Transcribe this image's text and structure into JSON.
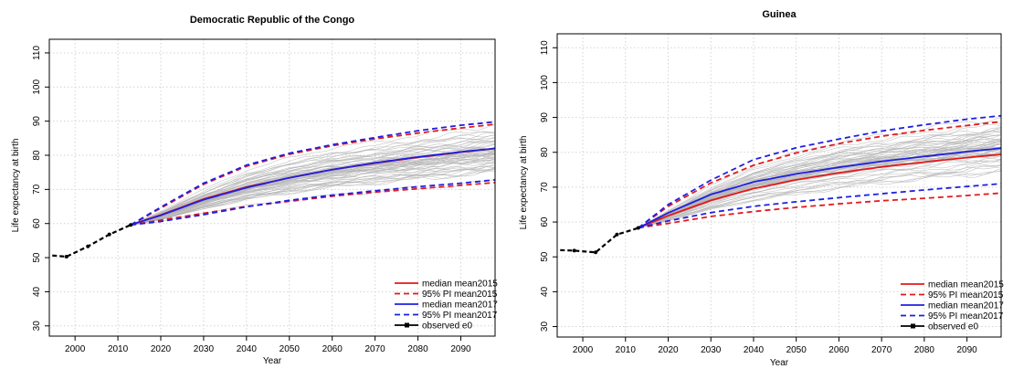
{
  "chart_data": [
    {
      "type": "line",
      "title": "Democratic Republic of the Congo",
      "xlabel": "Year",
      "ylabel": "Life expectancy at birth",
      "xlim": [
        1994,
        2098
      ],
      "ylim": [
        27,
        114
      ],
      "xticks": [
        2000,
        2010,
        2020,
        2030,
        2040,
        2050,
        2060,
        2070,
        2080,
        2090
      ],
      "yticks": [
        30,
        40,
        50,
        60,
        70,
        80,
        90,
        100,
        110
      ],
      "grid": true,
      "legend_position": "bottom-right",
      "observed": {
        "name": "observed e0",
        "color": "#000000",
        "x": [
          1993,
          1998,
          2003,
          2008,
          2013
        ],
        "y": [
          50.8,
          50.3,
          53.3,
          56.8,
          59.6
        ]
      },
      "trajectory_band": {
        "x": [
          2013,
          2020,
          2030,
          2040,
          2050,
          2060,
          2070,
          2080,
          2090,
          2098
        ],
        "low": [
          59.5,
          60.5,
          63,
          65,
          66.5,
          68,
          69,
          70,
          71,
          72
        ],
        "high": [
          59.7,
          64,
          71,
          77,
          81,
          84,
          86,
          88,
          90,
          91
        ],
        "count": 60,
        "color": "#b3b3b3"
      },
      "series": [
        {
          "name": "median mean2015",
          "color": "#e31a1c",
          "dash": false,
          "x": [
            2013,
            2020,
            2030,
            2040,
            2050,
            2060,
            2070,
            2080,
            2090,
            2098
          ],
          "y": [
            59.6,
            62.5,
            67.2,
            70.7,
            73.4,
            75.8,
            77.7,
            79.4,
            80.9,
            82
          ]
        },
        {
          "name": "95% PI mean2015",
          "color": "#e31a1c",
          "dash": true,
          "x": [
            2013,
            2020,
            2030,
            2040,
            2050,
            2060,
            2070,
            2080,
            2090,
            2098
          ],
          "y": [
            59.6,
            64.5,
            71.5,
            76.8,
            80.3,
            82.8,
            84.8,
            86.5,
            88,
            89.1
          ]
        },
        {
          "name": "95% PI mean2015",
          "color": "#e31a1c",
          "dash": true,
          "x": [
            2013,
            2020,
            2030,
            2040,
            2050,
            2060,
            2070,
            2080,
            2090,
            2098
          ],
          "y": [
            59.6,
            61,
            63,
            65,
            66.5,
            68,
            69.2,
            70.2,
            71.2,
            72
          ]
        },
        {
          "name": "median mean2017",
          "color": "#1f1fe0",
          "dash": false,
          "x": [
            2013,
            2020,
            2030,
            2040,
            2050,
            2060,
            2070,
            2080,
            2090,
            2098
          ],
          "y": [
            59.6,
            62.4,
            67,
            70.5,
            73.4,
            75.8,
            77.8,
            79.5,
            81,
            82
          ]
        },
        {
          "name": "95% PI mean2017",
          "color": "#1f1fe0",
          "dash": true,
          "x": [
            2013,
            2020,
            2030,
            2040,
            2050,
            2060,
            2070,
            2080,
            2090,
            2098
          ],
          "y": [
            59.6,
            64.8,
            71.8,
            77.1,
            80.6,
            83.1,
            85.2,
            87.2,
            88.8,
            89.8
          ]
        },
        {
          "name": "95% PI mean2017",
          "color": "#1f1fe0",
          "dash": true,
          "x": [
            2013,
            2020,
            2030,
            2040,
            2050,
            2060,
            2070,
            2080,
            2090,
            2098
          ],
          "y": [
            59.6,
            60.6,
            62.6,
            64.9,
            66.8,
            68.3,
            69.6,
            70.8,
            71.8,
            72.8
          ]
        }
      ],
      "legend": [
        {
          "label": "median mean2015",
          "color": "#e31a1c",
          "style": "solid"
        },
        {
          "label": "95% PI mean2015",
          "color": "#e31a1c",
          "style": "dashed"
        },
        {
          "label": "median mean2017",
          "color": "#1f1fe0",
          "style": "solid"
        },
        {
          "label": "95% PI mean2017",
          "color": "#1f1fe0",
          "style": "dashed"
        },
        {
          "label": "observed e0",
          "color": "#000000",
          "style": "solid-point"
        }
      ]
    },
    {
      "type": "line",
      "title": "Guinea",
      "xlabel": "Year",
      "ylabel": "Life expectancy at birth",
      "xlim": [
        1994,
        2098
      ],
      "ylim": [
        27,
        114
      ],
      "xticks": [
        2000,
        2010,
        2020,
        2030,
        2040,
        2050,
        2060,
        2070,
        2080,
        2090
      ],
      "yticks": [
        30,
        40,
        50,
        60,
        70,
        80,
        90,
        100,
        110
      ],
      "grid": true,
      "legend_position": "bottom-right",
      "observed": {
        "name": "observed e0",
        "color": "#000000",
        "x": [
          1993,
          1998,
          2003,
          2008,
          2013
        ],
        "y": [
          52,
          51.8,
          51.3,
          56.4,
          58.3
        ]
      },
      "trajectory_band": {
        "x": [
          2013,
          2020,
          2030,
          2040,
          2050,
          2060,
          2070,
          2080,
          2090,
          2098
        ],
        "low": [
          58.2,
          60,
          62.5,
          64.5,
          66,
          67.5,
          69,
          70,
          71,
          72
        ],
        "high": [
          58.4,
          63.5,
          71,
          77,
          81,
          84,
          86,
          88,
          90,
          91
        ],
        "count": 60,
        "color": "#b3b3b3"
      },
      "series": [
        {
          "name": "median mean2015",
          "color": "#e31a1c",
          "dash": false,
          "x": [
            2013,
            2020,
            2030,
            2040,
            2050,
            2060,
            2070,
            2080,
            2090,
            2098
          ],
          "y": [
            58.3,
            61.8,
            66.2,
            69.6,
            72.1,
            74.1,
            75.8,
            77.2,
            78.5,
            79.4
          ]
        },
        {
          "name": "95% PI mean2015",
          "color": "#e31a1c",
          "dash": true,
          "x": [
            2013,
            2020,
            2030,
            2040,
            2050,
            2060,
            2070,
            2080,
            2090,
            2098
          ],
          "y": [
            58.3,
            64.5,
            71.2,
            76.3,
            79.8,
            82.5,
            84.6,
            86.3,
            87.7,
            88.8
          ]
        },
        {
          "name": "95% PI mean2015",
          "color": "#e31a1c",
          "dash": true,
          "x": [
            2013,
            2020,
            2030,
            2040,
            2050,
            2060,
            2070,
            2080,
            2090,
            2098
          ],
          "y": [
            58.3,
            59.6,
            61.6,
            63,
            64.2,
            65.2,
            66.1,
            66.8,
            67.6,
            68.3
          ]
        },
        {
          "name": "median mean2017",
          "color": "#1f1fe0",
          "dash": false,
          "x": [
            2013,
            2020,
            2030,
            2040,
            2050,
            2060,
            2070,
            2080,
            2090,
            2098
          ],
          "y": [
            58.3,
            62.6,
            67.9,
            71.5,
            73.8,
            75.7,
            77.4,
            78.8,
            80.2,
            81.2
          ]
        },
        {
          "name": "95% PI mean2017",
          "color": "#1f1fe0",
          "dash": true,
          "x": [
            2013,
            2020,
            2030,
            2040,
            2050,
            2060,
            2070,
            2080,
            2090,
            2098
          ],
          "y": [
            58.3,
            65,
            72,
            77.9,
            81.3,
            83.8,
            86.1,
            87.9,
            89.5,
            90.5
          ]
        },
        {
          "name": "95% PI mean2017",
          "color": "#1f1fe0",
          "dash": true,
          "x": [
            2013,
            2020,
            2030,
            2040,
            2050,
            2060,
            2070,
            2080,
            2090,
            2098
          ],
          "y": [
            58.3,
            60.3,
            62.7,
            64.5,
            65.8,
            67,
            68.1,
            69.2,
            70.2,
            71
          ]
        }
      ],
      "legend": [
        {
          "label": "median mean2015",
          "color": "#e31a1c",
          "style": "solid"
        },
        {
          "label": "95% PI mean2015",
          "color": "#e31a1c",
          "style": "dashed"
        },
        {
          "label": "median mean2017",
          "color": "#1f1fe0",
          "style": "solid"
        },
        {
          "label": "95% PI mean2017",
          "color": "#1f1fe0",
          "style": "dashed"
        },
        {
          "label": "observed e0",
          "color": "#000000",
          "style": "solid-point"
        }
      ]
    }
  ]
}
